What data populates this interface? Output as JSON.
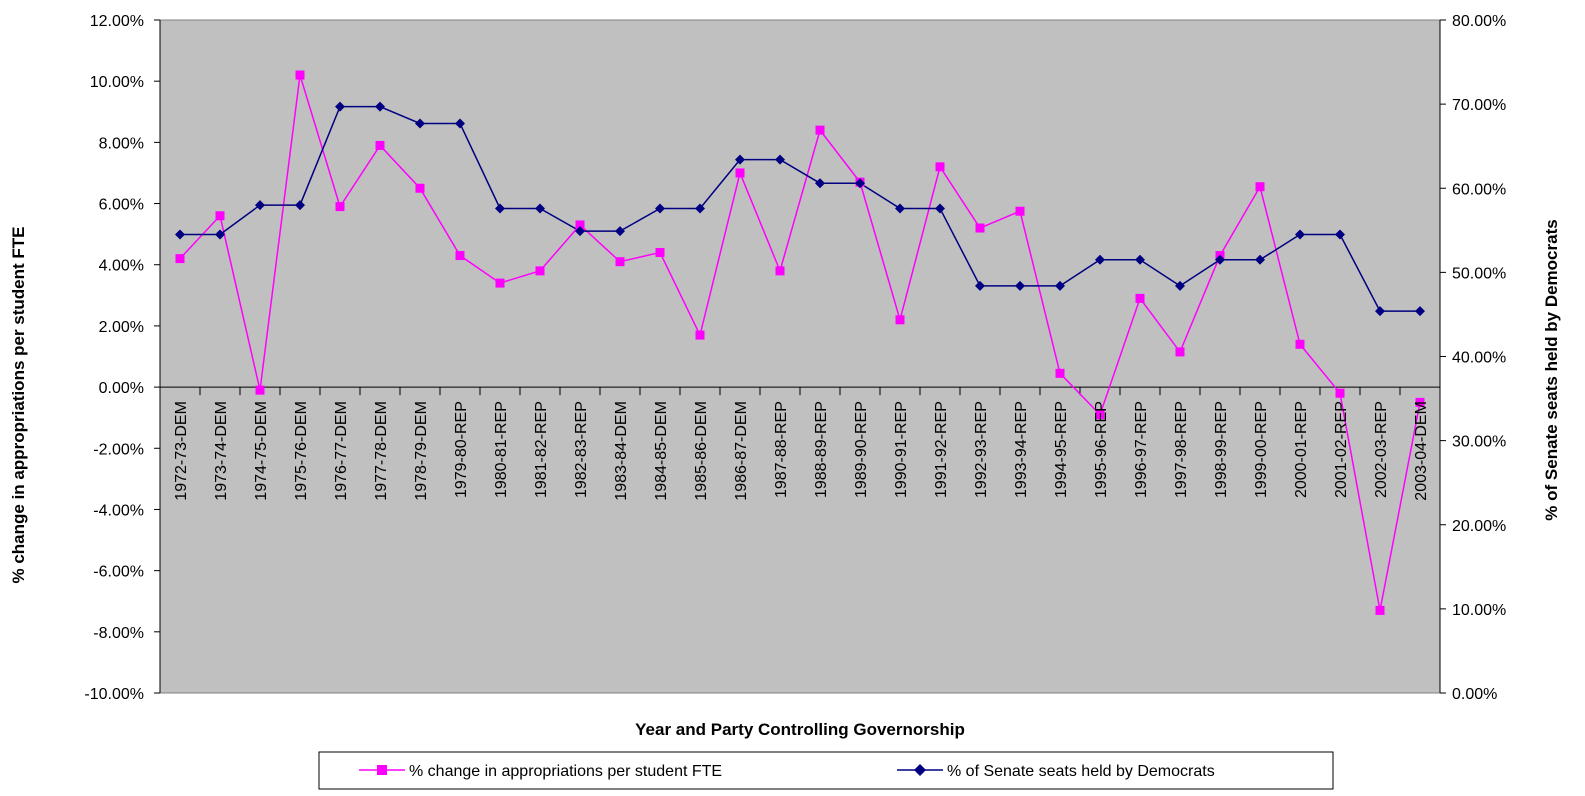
{
  "chart_data": {
    "type": "line",
    "title": "",
    "xlabel": "Year and Party Controlling Governorship",
    "ylabel_left": "% change in appropriations per student FTE",
    "ylabel_right": "% of Senate seats held by Democrats",
    "grid": false,
    "legend_position": "bottom",
    "plot_background": "#c0c0c0",
    "y_left": {
      "min": -10,
      "max": 12,
      "step": 2,
      "ticks": [
        "12.00%",
        "10.00%",
        "8.00%",
        "6.00%",
        "4.00%",
        "2.00%",
        "0.00%",
        "-2.00%",
        "-4.00%",
        "-6.00%",
        "-8.00%",
        "-10.00%"
      ]
    },
    "y_right": {
      "min": 0,
      "max": 80,
      "step": 10,
      "ticks": [
        "80.00%",
        "70.00%",
        "60.00%",
        "50.00%",
        "40.00%",
        "30.00%",
        "20.00%",
        "10.00%",
        "0.00%"
      ]
    },
    "categories": [
      "1972-73-DEM",
      "1973-74-DEM",
      "1974-75-DEM",
      "1975-76-DEM",
      "1976-77-DEM",
      "1977-78-DEM",
      "1978-79-DEM",
      "1979-80-REP",
      "1980-81-REP",
      "1981-82-REP",
      "1982-83-REP",
      "1983-84-DEM",
      "1984-85-DEM",
      "1985-86-DEM",
      "1986-87-DEM",
      "1987-88-REP",
      "1988-89-REP",
      "1989-90-REP",
      "1990-91-REP",
      "1991-92-REP",
      "1992-93-REP",
      "1993-94-REP",
      "1994-95-REP",
      "1995-96-REP",
      "1996-97-REP",
      "1997-98-REP",
      "1998-99-REP",
      "1999-00-REP",
      "2000-01-REP",
      "2001-02-REP",
      "2002-03-REP",
      "2003-04-DEM"
    ],
    "series": [
      {
        "name": "% change in appropriations per student FTE",
        "axis": "left",
        "color": "#ff00ff",
        "marker": "square",
        "values": [
          4.2,
          5.6,
          -0.1,
          10.2,
          5.9,
          7.9,
          6.5,
          4.3,
          3.4,
          3.8,
          5.3,
          4.1,
          4.4,
          1.7,
          7.0,
          3.8,
          8.4,
          6.7,
          2.2,
          7.2,
          5.2,
          5.75,
          0.45,
          -0.9,
          2.9,
          1.15,
          4.3,
          6.55,
          1.4,
          -0.2,
          -7.3,
          -0.5
        ]
      },
      {
        "name": "% of Senate seats held by Democrats",
        "axis": "right",
        "color": "#000080",
        "marker": "diamond",
        "values": [
          54.5,
          54.5,
          58.0,
          58.0,
          69.7,
          69.7,
          67.7,
          67.7,
          57.6,
          57.6,
          54.9,
          54.9,
          57.6,
          57.6,
          63.4,
          63.4,
          60.6,
          60.6,
          57.6,
          57.6,
          48.4,
          48.4,
          48.4,
          51.5,
          51.5,
          48.4,
          51.5,
          51.5,
          54.5,
          54.5,
          45.4,
          45.4
        ]
      }
    ]
  }
}
